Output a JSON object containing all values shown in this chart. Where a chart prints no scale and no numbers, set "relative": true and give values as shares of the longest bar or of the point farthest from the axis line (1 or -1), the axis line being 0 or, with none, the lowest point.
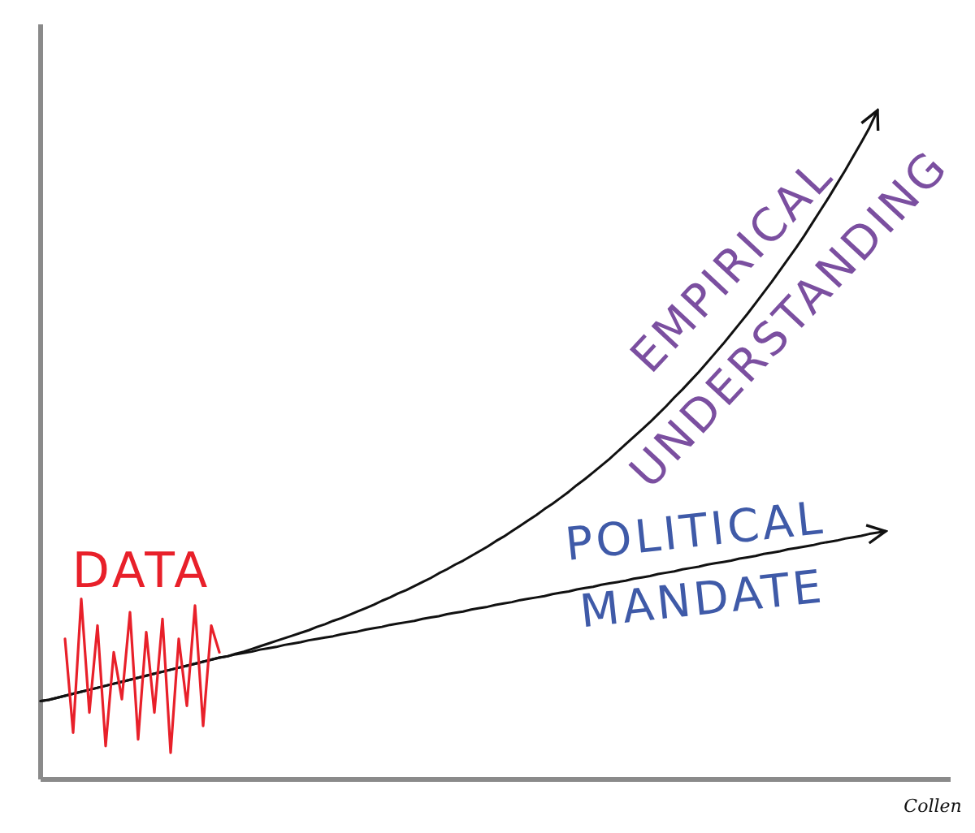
{
  "chart_data": {
    "type": "line",
    "relative": true,
    "marker": "none",
    "line_style": "solid",
    "categories": [
      null,
      null,
      null,
      null,
      null,
      null,
      null,
      null,
      null,
      null,
      null,
      null,
      null,
      null,
      null,
      null,
      null,
      null,
      null,
      null,
      null,
      null,
      null,
      null,
      null,
      null,
      null,
      null,
      null,
      null,
      null,
      null,
      null,
      null,
      null,
      null,
      null,
      null,
      null,
      null,
      null,
      null,
      null,
      null,
      null,
      null,
      null,
      null,
      null,
      null,
      null,
      null,
      null,
      null,
      null,
      null,
      null,
      null,
      null,
      null,
      null,
      null,
      null,
      null,
      null,
      null,
      null,
      null,
      null,
      null,
      null,
      null,
      null,
      null,
      null,
      null,
      null,
      null,
      null,
      null,
      null,
      null,
      null,
      null,
      null,
      null,
      null,
      null,
      null,
      null,
      null,
      null,
      null,
      null,
      null,
      null,
      null,
      null,
      null,
      null,
      null,
      null,
      null,
      null,
      null
    ],
    "series": [
      {
        "name": "EMPIRICAL UNDERSTANDING",
        "color": "#111111",
        "values": [
          0.117,
          0.119,
          0.122,
          0.125,
          0.128,
          0.131,
          0.134,
          0.137,
          0.14,
          0.143,
          0.146,
          0.149,
          0.152,
          0.155,
          0.158,
          0.161,
          0.164,
          0.167,
          0.17,
          0.173,
          0.176,
          0.179,
          0.182,
          0.184,
          0.188,
          0.191,
          0.195,
          0.199,
          0.203,
          0.207,
          0.211,
          0.215,
          0.219,
          0.223,
          0.228,
          0.232,
          0.237,
          0.241,
          0.246,
          0.251,
          0.256,
          0.261,
          0.267,
          0.272,
          0.278,
          0.283,
          0.289,
          0.295,
          0.301,
          0.308,
          0.314,
          0.321,
          0.327,
          0.334,
          0.341,
          0.348,
          0.356,
          0.363,
          0.371,
          0.379,
          0.387,
          0.395,
          0.404,
          0.412,
          0.421,
          0.43,
          0.44,
          0.449,
          0.459,
          0.469,
          0.479,
          0.49,
          0.501,
          0.512,
          0.523,
          0.534,
          0.546,
          0.558,
          0.571,
          0.583,
          0.596,
          0.609,
          0.623,
          0.637,
          0.651,
          0.666,
          0.681,
          0.696,
          0.712,
          0.728,
          0.744,
          0.761,
          0.778,
          0.795,
          0.813,
          0.832,
          0.851,
          0.87,
          0.89,
          0.91,
          0.931,
          0.952,
          0.974,
          1.0,
          null
        ]
      },
      {
        "name": "POLITICAL MANDATE",
        "color": "#111111",
        "values": [
          0.117,
          0.119,
          0.122,
          0.125,
          0.128,
          0.131,
          0.134,
          0.137,
          0.14,
          0.143,
          0.146,
          0.149,
          0.152,
          0.155,
          0.158,
          0.161,
          0.164,
          0.167,
          0.17,
          0.173,
          0.176,
          0.179,
          0.182,
          0.184,
          0.187,
          0.189,
          0.191,
          0.194,
          0.196,
          0.198,
          0.201,
          0.203,
          0.205,
          0.208,
          0.21,
          0.212,
          0.214,
          0.217,
          0.219,
          0.221,
          0.224,
          0.226,
          0.228,
          0.231,
          0.233,
          0.235,
          0.237,
          0.24,
          0.242,
          0.244,
          0.247,
          0.249,
          0.251,
          0.254,
          0.256,
          0.258,
          0.261,
          0.263,
          0.265,
          0.268,
          0.27,
          0.272,
          0.274,
          0.277,
          0.279,
          0.281,
          0.284,
          0.286,
          0.288,
          0.291,
          0.293,
          0.295,
          0.297,
          0.3,
          0.302,
          0.304,
          0.307,
          0.309,
          0.311,
          0.314,
          0.316,
          0.318,
          0.321,
          0.323,
          0.325,
          0.327,
          0.33,
          0.332,
          0.334,
          0.337,
          0.339,
          0.341,
          0.344,
          0.346,
          0.348,
          0.35,
          0.353,
          0.355,
          0.357,
          0.36,
          0.362,
          0.364,
          0.367,
          0.369,
          0.371
        ]
      },
      {
        "name": "DATA",
        "color": "#e8202a",
        "values": [
          null,
          null,
          null,
          0.21,
          0.07,
          0.27,
          0.1,
          0.23,
          0.05,
          0.19,
          0.12,
          0.25,
          0.06,
          0.22,
          0.1,
          0.24,
          0.04,
          0.21,
          0.11,
          0.26,
          0.08,
          0.23,
          0.19,
          null,
          null,
          null,
          null,
          null,
          null,
          null,
          null,
          null,
          null,
          null,
          null,
          null,
          null,
          null,
          null,
          null,
          null,
          null,
          null,
          null,
          null,
          null,
          null,
          null,
          null,
          null,
          null,
          null,
          null,
          null,
          null,
          null,
          null,
          null,
          null,
          null,
          null,
          null,
          null,
          null,
          null,
          null,
          null,
          null,
          null,
          null,
          null,
          null,
          null,
          null,
          null,
          null,
          null,
          null,
          null,
          null,
          null,
          null,
          null,
          null,
          null,
          null,
          null,
          null,
          null,
          null,
          null,
          null,
          null,
          null,
          null,
          null,
          null,
          null,
          null,
          null,
          null,
          null,
          null,
          null,
          null
        ]
      }
    ],
    "annotations": [
      "Collen"
    ]
  }
}
